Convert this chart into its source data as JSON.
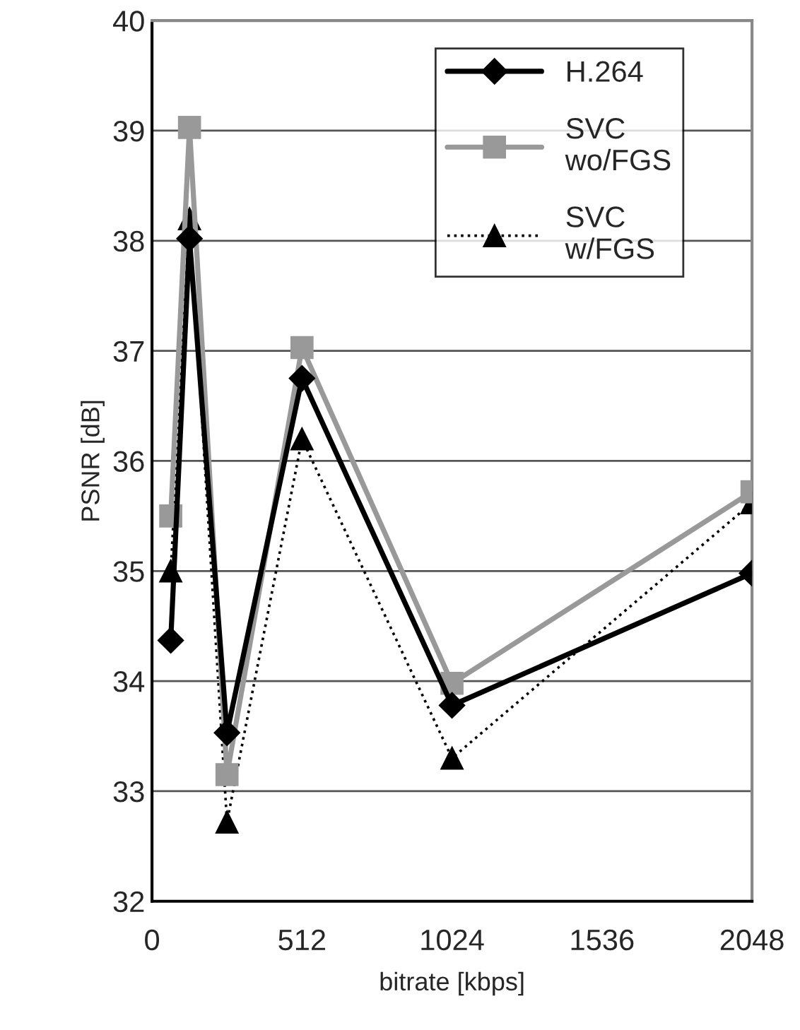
{
  "chart_data": {
    "type": "line",
    "xlabel": "bitrate [kbps]",
    "ylabel": "PSNR [dB]",
    "x": [
      64,
      128,
      256,
      512,
      1024,
      2048
    ],
    "series": [
      {
        "name": "H.264",
        "color": "#000000",
        "marker": "diamond",
        "line_style": "solid",
        "values": [
          34.37,
          38.02,
          33.53,
          36.75,
          33.78,
          34.98
        ]
      },
      {
        "name": "SVC\nwo/FGS",
        "color": "#999999",
        "marker": "square",
        "line_style": "solid",
        "values": [
          35.5,
          39.03,
          33.15,
          37.03,
          33.98,
          35.72
        ]
      },
      {
        "name": "SVC\nw/FGS",
        "color": "#000000",
        "marker": "triangle",
        "line_style": "dotted",
        "values": [
          35.0,
          38.2,
          32.72,
          36.2,
          33.3,
          35.62
        ]
      }
    ],
    "xlim": [
      0,
      2048
    ],
    "xticks": [
      0,
      512,
      1024,
      1536,
      2048
    ],
    "ylim": [
      32,
      40
    ],
    "yticks": [
      32,
      33,
      34,
      35,
      36,
      37,
      38,
      39,
      40
    ],
    "grid": "y",
    "legend": "top right"
  }
}
